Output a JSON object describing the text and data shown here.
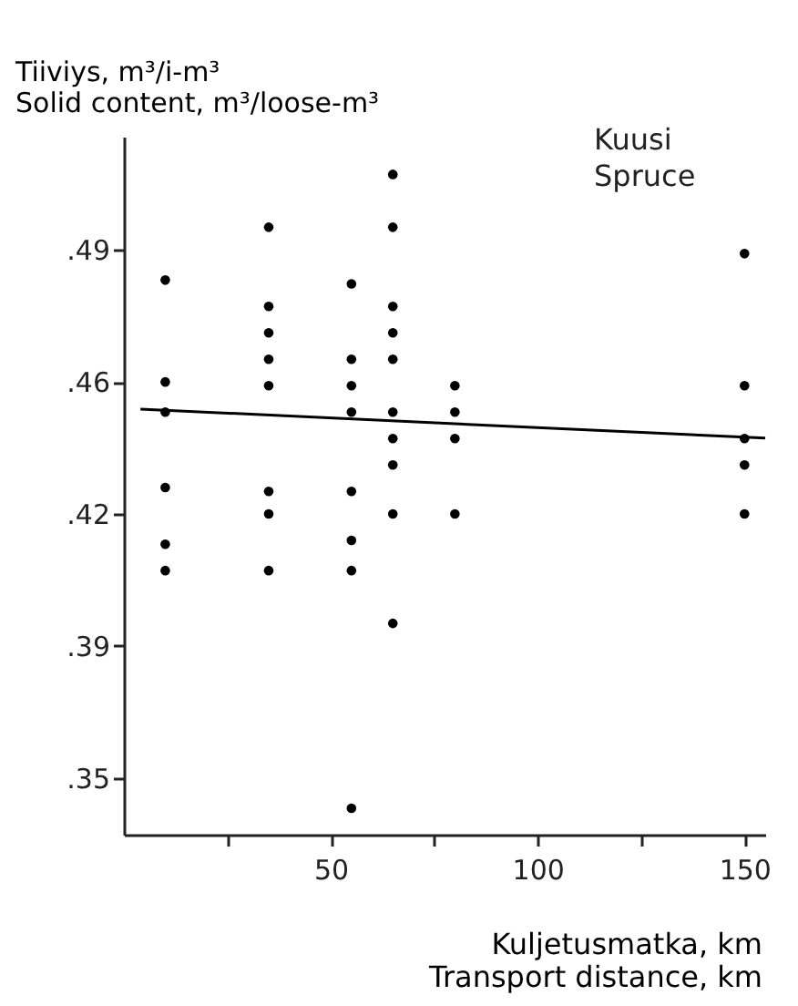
{
  "chart_data": {
    "type": "scatter",
    "xlabel": "Kuljetusmatka, km\nTransport distance, km",
    "ylabel": "Tiiviys, m³/i-m³\nSolid content, m³/loose-m³",
    "annotations": [
      "Kuusi",
      "Spruce"
    ],
    "xlim": [
      0,
      155
    ],
    "xticks": [
      {
        "value": 25,
        "label": null
      },
      50,
      {
        "value": 75,
        "label": null
      },
      100,
      {
        "value": 125,
        "label": null
      },
      150
    ],
    "ylim": [
      0.335,
      0.52
    ],
    "yticks": [
      {
        "value": 0.35,
        "label": ".35"
      },
      {
        "value": 0.385,
        "label": ".39"
      },
      {
        "value": 0.42,
        "label": ".42"
      },
      {
        "value": 0.455,
        "label": ".46"
      },
      {
        "value": 0.49,
        "label": ".49"
      }
    ],
    "grid": false,
    "series": [
      {
        "color": "#000000",
        "marker": "circle",
        "x": [
          10,
          10,
          10,
          10,
          10,
          10,
          35,
          35,
          35,
          35,
          35,
          35,
          35,
          35,
          55,
          55,
          55,
          55,
          55,
          55,
          55,
          55,
          65,
          65,
          65,
          65,
          65,
          65,
          65,
          65,
          65,
          65,
          80,
          80,
          80,
          80,
          150,
          150,
          150,
          150,
          150
        ],
        "values": [
          0.482,
          0.455,
          0.447,
          0.427,
          0.412,
          0.405,
          0.496,
          0.475,
          0.468,
          0.461,
          0.454,
          0.426,
          0.42,
          0.405,
          0.481,
          0.461,
          0.454,
          0.447,
          0.426,
          0.413,
          0.405,
          0.342,
          0.51,
          0.496,
          0.475,
          0.468,
          0.461,
          0.447,
          0.44,
          0.433,
          0.42,
          0.391,
          0.454,
          0.447,
          0.44,
          0.42,
          0.489,
          0.454,
          0.44,
          0.433,
          0.42
        ]
      },
      {
        "type": "line",
        "color": "#000000",
        "line_style": "solid",
        "x": [
          4,
          155
        ],
        "values": [
          0.4478,
          0.4401
        ]
      }
    ]
  }
}
